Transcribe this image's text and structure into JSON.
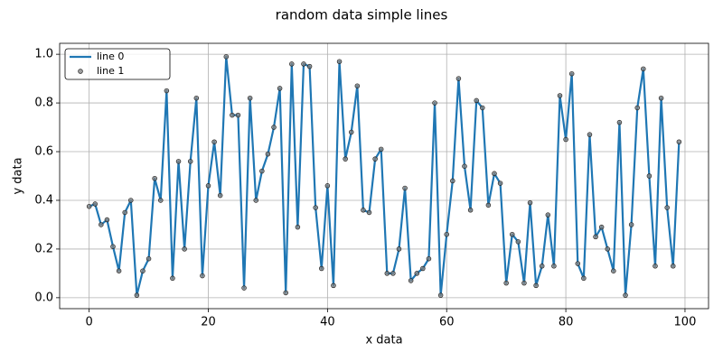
{
  "chart_data": {
    "type": "line",
    "title": "random data simple lines",
    "x_label": "x data",
    "y_label": "y data",
    "x": [
      0,
      1,
      2,
      3,
      4,
      5,
      6,
      7,
      8,
      9,
      10,
      11,
      12,
      13,
      14,
      15,
      16,
      17,
      18,
      19,
      20,
      21,
      22,
      23,
      24,
      25,
      26,
      27,
      28,
      29,
      30,
      31,
      32,
      33,
      34,
      35,
      36,
      37,
      38,
      39,
      40,
      41,
      42,
      43,
      44,
      45,
      46,
      47,
      48,
      49,
      50,
      51,
      52,
      53,
      54,
      55,
      56,
      57,
      58,
      59,
      60,
      61,
      62,
      63,
      64,
      65,
      66,
      67,
      68,
      69,
      70,
      71,
      72,
      73,
      74,
      75,
      76,
      77,
      78,
      79,
      80,
      81,
      82,
      83,
      84,
      85,
      86,
      87,
      88,
      89,
      90,
      91,
      92,
      93,
      94,
      95,
      96,
      97,
      98,
      99
    ],
    "series": [
      {
        "name": "line 0",
        "kind": "line",
        "color": "#1f77b4",
        "values": [
          0.375,
          0.385,
          0.3,
          0.32,
          0.21,
          0.11,
          0.35,
          0.4,
          0.01,
          0.11,
          0.16,
          0.49,
          0.4,
          0.85,
          0.08,
          0.56,
          0.2,
          0.56,
          0.82,
          0.09,
          0.46,
          0.64,
          0.42,
          0.99,
          0.75,
          0.75,
          0.04,
          0.82,
          0.4,
          0.52,
          0.59,
          0.7,
          0.86,
          0.02,
          0.96,
          0.29,
          0.96,
          0.95,
          0.37,
          0.12,
          0.46,
          0.05,
          0.97,
          0.57,
          0.68,
          0.87,
          0.36,
          0.35,
          0.57,
          0.61,
          0.1,
          0.1,
          0.2,
          0.45,
          0.07,
          0.1,
          0.12,
          0.16,
          0.8,
          0.01,
          0.26,
          0.48,
          0.9,
          0.54,
          0.36,
          0.81,
          0.78,
          0.38,
          0.51,
          0.47,
          0.06,
          0.26,
          0.23,
          0.06,
          0.39,
          0.05,
          0.13,
          0.34,
          0.13,
          0.83,
          0.65,
          0.92,
          0.14,
          0.08,
          0.67,
          0.25,
          0.29,
          0.2,
          0.11,
          0.72,
          0.01,
          0.3,
          0.78,
          0.94,
          0.5,
          0.13,
          0.82,
          0.37,
          0.13,
          0.64
        ]
      },
      {
        "name": "line 1",
        "kind": "scatter",
        "color": "#808080",
        "values": [
          0.375,
          0.385,
          0.3,
          0.32,
          0.21,
          0.11,
          0.35,
          0.4,
          0.01,
          0.11,
          0.16,
          0.49,
          0.4,
          0.85,
          0.08,
          0.56,
          0.2,
          0.56,
          0.82,
          0.09,
          0.46,
          0.64,
          0.42,
          0.99,
          0.75,
          0.75,
          0.04,
          0.82,
          0.4,
          0.52,
          0.59,
          0.7,
          0.86,
          0.02,
          0.96,
          0.29,
          0.96,
          0.95,
          0.37,
          0.12,
          0.46,
          0.05,
          0.97,
          0.57,
          0.68,
          0.87,
          0.36,
          0.35,
          0.57,
          0.61,
          0.1,
          0.1,
          0.2,
          0.45,
          0.07,
          0.1,
          0.12,
          0.16,
          0.8,
          0.01,
          0.26,
          0.48,
          0.9,
          0.54,
          0.36,
          0.81,
          0.78,
          0.38,
          0.51,
          0.47,
          0.06,
          0.26,
          0.23,
          0.06,
          0.39,
          0.05,
          0.13,
          0.34,
          0.13,
          0.83,
          0.65,
          0.92,
          0.14,
          0.08,
          0.67,
          0.25,
          0.29,
          0.2,
          0.11,
          0.72,
          0.01,
          0.3,
          0.78,
          0.94,
          0.5,
          0.13,
          0.82,
          0.37,
          0.13,
          0.64
        ]
      }
    ],
    "xlim": [
      -4.95,
      103.95
    ],
    "ylim": [
      -0.045,
      1.045
    ],
    "xticks": [
      0,
      20,
      40,
      60,
      80,
      100
    ],
    "yticks": [
      {
        "value": 0,
        "label": "0.0"
      },
      {
        "value": 0.2,
        "label": "0.2"
      },
      {
        "value": 0.4,
        "label": "0.4"
      },
      {
        "value": 0.6,
        "label": "0.6"
      },
      {
        "value": 0.8,
        "label": "0.8"
      },
      {
        "value": 1,
        "label": "1.0"
      }
    ],
    "grid": true,
    "legend": "upper left"
  }
}
